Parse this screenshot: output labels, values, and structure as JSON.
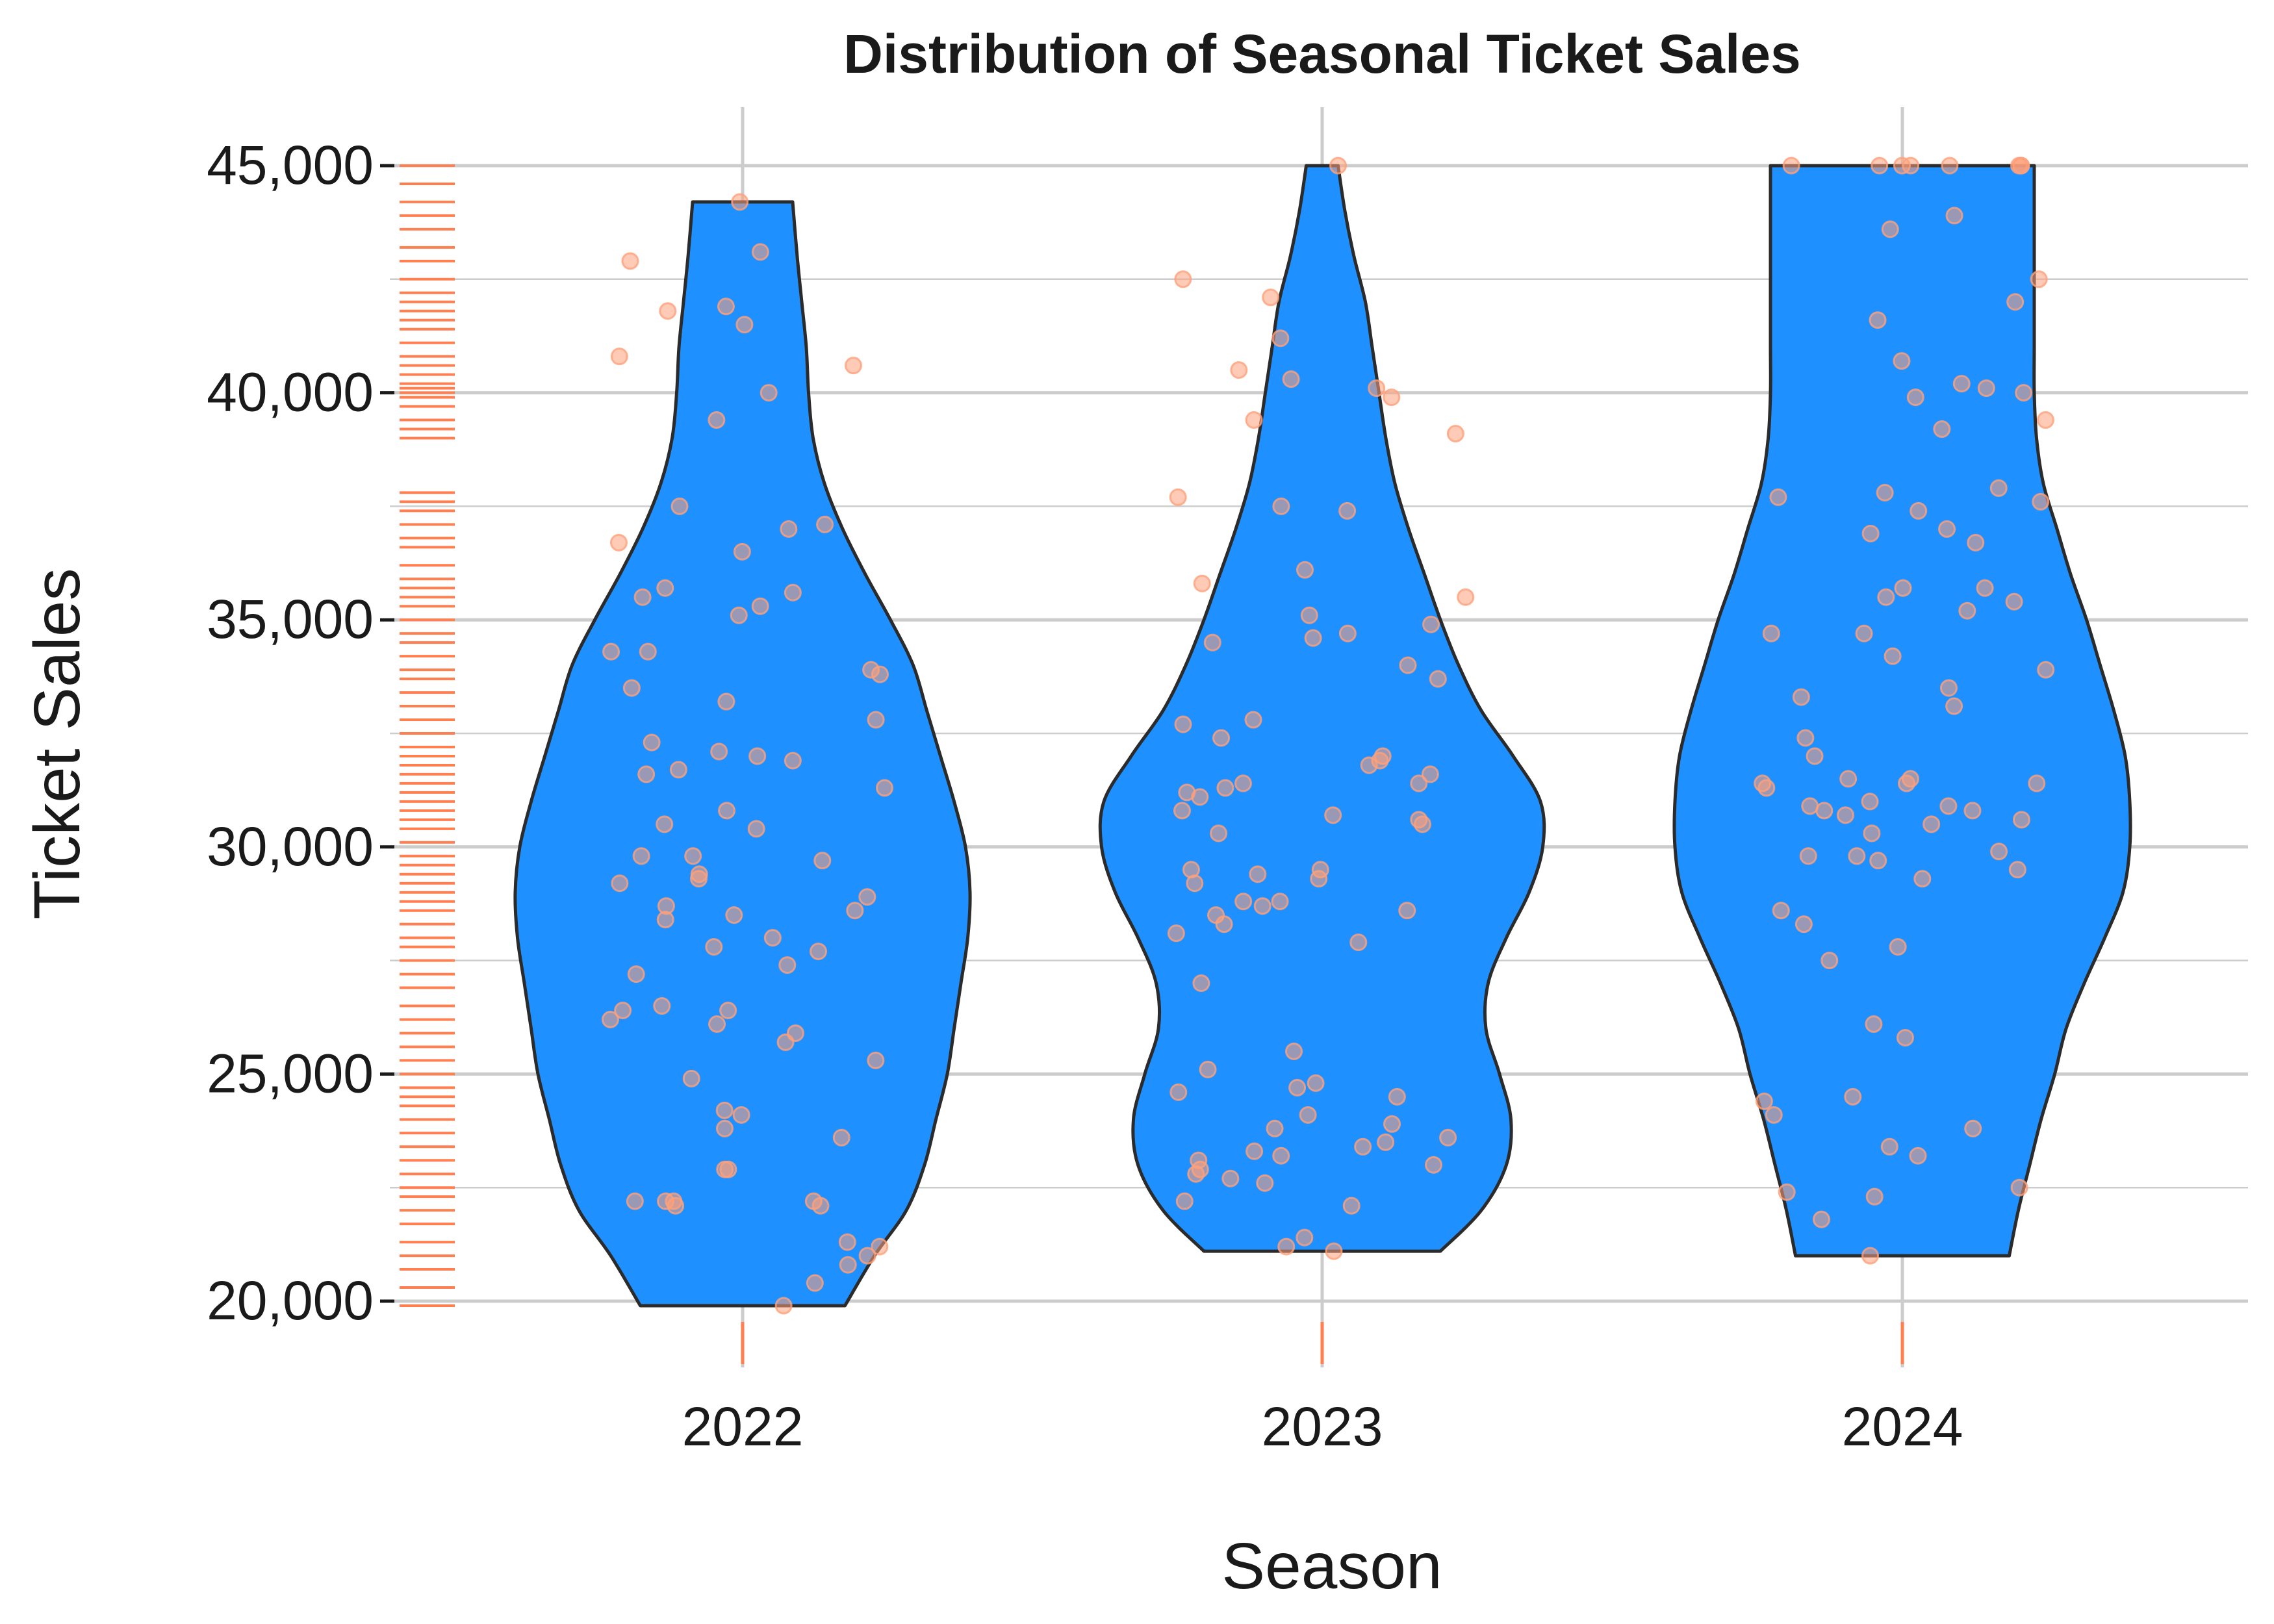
{
  "colors": {
    "violin_fill": "#1E90FF",
    "violin_stroke": "#2b2b2b",
    "points": "#FFA07A",
    "rug": "#FF7F50",
    "grid": "#cccccc"
  },
  "chart_data": {
    "type": "violin",
    "title": "Distribution of Seasonal Ticket Sales",
    "xlabel": "Season",
    "ylabel": "Ticket Sales",
    "categories": [
      "2022",
      "2023",
      "2024"
    ],
    "ylim": [
      19000,
      46000
    ],
    "y_ticks": [
      20000,
      25000,
      30000,
      35000,
      40000,
      45000
    ],
    "y_tick_labels": [
      "20,000",
      "25,000",
      "30,000",
      "35,000",
      "40,000",
      "45,000"
    ],
    "grid": true,
    "series": [
      {
        "season": "2022",
        "min": 19900,
        "max": 44200,
        "density_profile": [
          [
            19900,
            0.45
          ],
          [
            21000,
            0.58
          ],
          [
            22000,
            0.72
          ],
          [
            23000,
            0.8
          ],
          [
            24000,
            0.85
          ],
          [
            25000,
            0.9
          ],
          [
            26000,
            0.93
          ],
          [
            27000,
            0.96
          ],
          [
            28000,
            0.99
          ],
          [
            29000,
            1.0
          ],
          [
            30000,
            0.98
          ],
          [
            31000,
            0.93
          ],
          [
            32000,
            0.87
          ],
          [
            33000,
            0.81
          ],
          [
            34000,
            0.75
          ],
          [
            35000,
            0.65
          ],
          [
            36000,
            0.54
          ],
          [
            37000,
            0.44
          ],
          [
            38000,
            0.36
          ],
          [
            39000,
            0.31
          ],
          [
            40000,
            0.29
          ],
          [
            41000,
            0.28
          ],
          [
            42000,
            0.26
          ],
          [
            43000,
            0.24
          ],
          [
            44200,
            0.22
          ]
        ],
        "points": [
          44200,
          43100,
          42900,
          41800,
          41900,
          41500,
          40800,
          40600,
          40000,
          39400,
          37500,
          37100,
          37000,
          36700,
          36500,
          35700,
          35600,
          35500,
          35300,
          35100,
          34300,
          34300,
          33900,
          33800,
          33500,
          33200,
          32800,
          32300,
          32100,
          32000,
          31900,
          31700,
          31600,
          31300,
          30800,
          30500,
          30400,
          29800,
          29800,
          29700,
          29400,
          29300,
          29200,
          28900,
          28700,
          28600,
          28500,
          28400,
          28000,
          27800,
          27700,
          27400,
          27200,
          26500,
          26400,
          26400,
          26200,
          26100,
          25900,
          25700,
          25300,
          24900,
          24200,
          24100,
          23800,
          23600,
          22900,
          22900,
          22200,
          22200,
          22200,
          22200,
          22100,
          22100,
          21300,
          21200,
          21000,
          20800,
          20400,
          19900
        ]
      },
      {
        "season": "2023",
        "min": 21100,
        "max": 45000,
        "density_profile": [
          [
            21100,
            0.52
          ],
          [
            22000,
            0.7
          ],
          [
            23000,
            0.81
          ],
          [
            24000,
            0.83
          ],
          [
            25000,
            0.78
          ],
          [
            26000,
            0.72
          ],
          [
            27000,
            0.73
          ],
          [
            28000,
            0.81
          ],
          [
            29000,
            0.91
          ],
          [
            30000,
            0.97
          ],
          [
            31000,
            0.96
          ],
          [
            32000,
            0.84
          ],
          [
            33000,
            0.7
          ],
          [
            34000,
            0.6
          ],
          [
            35000,
            0.52
          ],
          [
            36000,
            0.45
          ],
          [
            37000,
            0.38
          ],
          [
            38000,
            0.32
          ],
          [
            39000,
            0.28
          ],
          [
            40000,
            0.25
          ],
          [
            41000,
            0.22
          ],
          [
            42000,
            0.19
          ],
          [
            43000,
            0.14
          ],
          [
            44000,
            0.1
          ],
          [
            45000,
            0.07
          ]
        ],
        "points": [
          45000,
          42500,
          42100,
          41200,
          40500,
          40300,
          40100,
          39900,
          39400,
          39100,
          37700,
          37500,
          37400,
          36100,
          35800,
          35500,
          35100,
          34900,
          34700,
          34600,
          34500,
          34000,
          33700,
          32800,
          32700,
          32400,
          32000,
          31900,
          31800,
          31600,
          31400,
          31400,
          31300,
          31200,
          31100,
          30800,
          30700,
          30600,
          30500,
          30300,
          29500,
          29500,
          29400,
          29300,
          29200,
          28800,
          28800,
          28700,
          28600,
          28500,
          28300,
          28100,
          27900,
          27000,
          25500,
          25100,
          24800,
          24700,
          24600,
          24500,
          24100,
          23900,
          23800,
          23600,
          23500,
          23400,
          23300,
          23200,
          23100,
          23000,
          22900,
          22800,
          22700,
          22600,
          22200,
          22100,
          21400,
          21200,
          21100
        ]
      },
      {
        "season": "2024",
        "min": 21000,
        "max": 45000,
        "density_profile": [
          [
            21000,
            0.47
          ],
          [
            22000,
            0.51
          ],
          [
            23000,
            0.56
          ],
          [
            24000,
            0.61
          ],
          [
            25000,
            0.67
          ],
          [
            26000,
            0.72
          ],
          [
            27000,
            0.8
          ],
          [
            28000,
            0.89
          ],
          [
            29000,
            0.97
          ],
          [
            30000,
            1.0
          ],
          [
            31000,
            1.0
          ],
          [
            32000,
            0.98
          ],
          [
            33000,
            0.93
          ],
          [
            34000,
            0.87
          ],
          [
            35000,
            0.81
          ],
          [
            36000,
            0.74
          ],
          [
            37000,
            0.68
          ],
          [
            38000,
            0.62
          ],
          [
            39000,
            0.59
          ],
          [
            40000,
            0.58
          ],
          [
            41000,
            0.58
          ],
          [
            42000,
            0.58
          ],
          [
            43000,
            0.58
          ],
          [
            44000,
            0.58
          ],
          [
            45000,
            0.58
          ]
        ],
        "points": [
          45000,
          45000,
          45000,
          45000,
          45000,
          45000,
          45000,
          45000,
          43900,
          43600,
          42500,
          42000,
          41600,
          40700,
          40200,
          40100,
          40000,
          39900,
          39400,
          39200,
          37900,
          37800,
          37700,
          37600,
          37400,
          37000,
          36900,
          36700,
          35700,
          35700,
          35500,
          35400,
          35200,
          34700,
          34700,
          34200,
          33900,
          33500,
          33300,
          33100,
          32400,
          32000,
          31500,
          31500,
          31400,
          31400,
          31400,
          31300,
          31000,
          30900,
          30900,
          30800,
          30800,
          30700,
          30600,
          30500,
          30300,
          29900,
          29800,
          29800,
          29700,
          29500,
          29300,
          28600,
          28300,
          27800,
          27500,
          26100,
          25800,
          24500,
          24400,
          24100,
          23800,
          23400,
          23200,
          22500,
          22400,
          22300,
          21800,
          21000
        ]
      }
    ],
    "rug_y_values": [
      45000,
      44600,
      44200,
      43900,
      43600,
      43200,
      42900,
      42500,
      42200,
      42000,
      41800,
      41600,
      41400,
      41100,
      40800,
      40600,
      40400,
      40200,
      40100,
      40000,
      39900,
      39700,
      39400,
      39200,
      39000,
      37800,
      37600,
      37400,
      37100,
      36800,
      36600,
      36200,
      35900,
      35700,
      35500,
      35300,
      35000,
      34700,
      34500,
      34200,
      33900,
      33700,
      33400,
      33100,
      32800,
      32500,
      32200,
      32000,
      31800,
      31600,
      31400,
      31200,
      31000,
      30800,
      30600,
      30400,
      30100,
      29800,
      29600,
      29400,
      29200,
      29000,
      28800,
      28600,
      28300,
      28000,
      27800,
      27500,
      27200,
      26900,
      26500,
      26200,
      25900,
      25600,
      25300,
      25000,
      24700,
      24500,
      24300,
      24000,
      23700,
      23400,
      23100,
      22800,
      22500,
      22300,
      22000,
      21700,
      21300,
      21000,
      20700,
      20300,
      19900
    ]
  }
}
